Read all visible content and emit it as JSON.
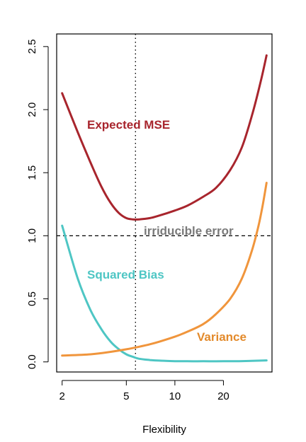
{
  "chart_data": {
    "type": "line",
    "title": "",
    "xlabel": "Flexibility",
    "ylabel": "",
    "x_scale": "log",
    "xlim": [
      1.85,
      40
    ],
    "ylim": [
      -0.08,
      2.6
    ],
    "x_ticks": [
      2,
      5,
      10,
      20
    ],
    "y_ticks": [
      "0.0",
      "0.5",
      "1.0",
      "1.5",
      "2.0",
      "2.5"
    ],
    "grid": false,
    "series": [
      {
        "name": "Expected MSE",
        "color": "#a8252d",
        "x": [
          2,
          2.5,
          3,
          3.5,
          4,
          4.5,
          5,
          5.5,
          6,
          7,
          8,
          10,
          12,
          15,
          18,
          22,
          26,
          30,
          34,
          37
        ],
        "y": [
          2.13,
          1.82,
          1.58,
          1.39,
          1.26,
          1.18,
          1.14,
          1.13,
          1.13,
          1.14,
          1.16,
          1.2,
          1.24,
          1.31,
          1.38,
          1.52,
          1.7,
          1.95,
          2.22,
          2.43
        ]
      },
      {
        "name": "Squared Bias",
        "color": "#4ec6c4",
        "x": [
          2,
          2.5,
          3,
          3.5,
          4,
          4.5,
          5,
          5.5,
          6,
          7,
          8,
          10,
          12,
          15,
          20,
          25,
          30,
          37
        ],
        "y": [
          1.08,
          0.66,
          0.41,
          0.26,
          0.16,
          0.1,
          0.06,
          0.04,
          0.025,
          0.015,
          0.01,
          0.006,
          0.005,
          0.005,
          0.005,
          0.006,
          0.008,
          0.012
        ]
      },
      {
        "name": "Variance",
        "color": "#f0953c",
        "x": [
          2,
          3,
          4,
          5,
          6,
          7,
          8,
          10,
          12,
          15,
          18,
          22,
          26,
          30,
          33,
          35,
          37
        ],
        "y": [
          0.05,
          0.06,
          0.08,
          0.1,
          0.12,
          0.14,
          0.16,
          0.2,
          0.24,
          0.3,
          0.38,
          0.5,
          0.66,
          0.88,
          1.08,
          1.24,
          1.42
        ]
      }
    ],
    "reference_lines": [
      {
        "orientation": "horizontal",
        "value": 1.0,
        "style": "dashed",
        "label": "irriducible error",
        "color": "#000000"
      },
      {
        "orientation": "vertical",
        "value": 5.7,
        "style": "dotted",
        "color": "#000000"
      }
    ],
    "labels": {
      "mse": "Expected MSE",
      "bias": "Squared Bias",
      "variance": "Variance",
      "irreducible": "irriducible error"
    },
    "label_colors": {
      "mse": "#a8252d",
      "bias": "#4ec6c4",
      "variance": "#e38a2b",
      "irreducible": "#7a7a7a"
    }
  }
}
